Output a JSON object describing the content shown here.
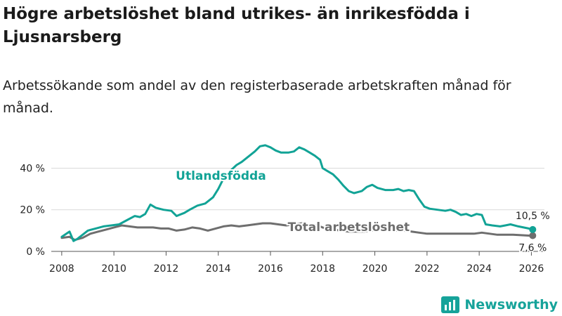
{
  "title": "Högre arbetslöshet bland utrikes- än inrikesfödda i Ljusnarsberg",
  "subtitle": "Arbetssökande som andel av den registerbaserade arbetskraften månad för månad.",
  "brand": {
    "name": "Newsworthy"
  },
  "colors": {
    "foreign": "#12a396",
    "total": "#6e6e6e",
    "grid": "#d9d9d9",
    "text": "#222222"
  },
  "chart_data": {
    "type": "line",
    "title": "Högre arbetslöshet bland utrikes- än inrikesfödda i Ljusnarsberg",
    "ylabel": "",
    "xlabel": "",
    "xlim": [
      2007.6,
      2026.5
    ],
    "ylim": [
      0,
      55
    ],
    "x_ticks": [
      2008,
      2010,
      2012,
      2014,
      2016,
      2018,
      2020,
      2022,
      2024,
      2026
    ],
    "x_tick_labels": [
      "2008",
      "2010",
      "2012",
      "2014",
      "2016",
      "2018",
      "2020",
      "2022",
      "2024",
      "2026"
    ],
    "y_ticks": [
      0,
      20,
      40
    ],
    "y_tick_labels": [
      "0 %",
      "20 %",
      "40 %"
    ],
    "grid": true,
    "series": [
      {
        "name": "Utlandsfödda",
        "end_label": "10,5 %",
        "points": [
          [
            2008.0,
            7
          ],
          [
            2008.3,
            9.5
          ],
          [
            2008.45,
            5
          ],
          [
            2008.6,
            6
          ],
          [
            2008.8,
            8
          ],
          [
            2009.0,
            10
          ],
          [
            2009.3,
            11
          ],
          [
            2009.6,
            12
          ],
          [
            2009.9,
            12.5
          ],
          [
            2010.2,
            13
          ],
          [
            2010.5,
            15
          ],
          [
            2010.8,
            17
          ],
          [
            2011.0,
            16.5
          ],
          [
            2011.2,
            18
          ],
          [
            2011.4,
            22.5
          ],
          [
            2011.6,
            21
          ],
          [
            2011.9,
            20
          ],
          [
            2012.2,
            19.5
          ],
          [
            2012.4,
            17
          ],
          [
            2012.7,
            18.5
          ],
          [
            2012.9,
            20
          ],
          [
            2013.2,
            22
          ],
          [
            2013.5,
            23
          ],
          [
            2013.8,
            26
          ],
          [
            2014.0,
            30
          ],
          [
            2014.2,
            35
          ],
          [
            2014.4,
            38
          ],
          [
            2014.7,
            41.5
          ],
          [
            2014.9,
            43
          ],
          [
            2015.1,
            45
          ],
          [
            2015.4,
            48
          ],
          [
            2015.6,
            50.5
          ],
          [
            2015.8,
            51
          ],
          [
            2016.0,
            50
          ],
          [
            2016.2,
            48.5
          ],
          [
            2016.4,
            47.5
          ],
          [
            2016.7,
            47.5
          ],
          [
            2016.9,
            48
          ],
          [
            2017.1,
            50
          ],
          [
            2017.3,
            49
          ],
          [
            2017.5,
            47.5
          ],
          [
            2017.7,
            46
          ],
          [
            2017.9,
            44
          ],
          [
            2018.0,
            40
          ],
          [
            2018.2,
            38.5
          ],
          [
            2018.4,
            37
          ],
          [
            2018.6,
            34.5
          ],
          [
            2018.8,
            31.5
          ],
          [
            2019.0,
            29
          ],
          [
            2019.2,
            28
          ],
          [
            2019.5,
            29
          ],
          [
            2019.7,
            31
          ],
          [
            2019.9,
            32
          ],
          [
            2020.1,
            30.5
          ],
          [
            2020.4,
            29.5
          ],
          [
            2020.7,
            29.5
          ],
          [
            2020.9,
            30
          ],
          [
            2021.1,
            29
          ],
          [
            2021.3,
            29.5
          ],
          [
            2021.5,
            29
          ],
          [
            2021.7,
            25
          ],
          [
            2021.9,
            21.5
          ],
          [
            2022.1,
            20.5
          ],
          [
            2022.4,
            20
          ],
          [
            2022.7,
            19.5
          ],
          [
            2022.9,
            20
          ],
          [
            2023.1,
            19
          ],
          [
            2023.3,
            17.5
          ],
          [
            2023.5,
            18
          ],
          [
            2023.7,
            17
          ],
          [
            2023.9,
            18
          ],
          [
            2024.1,
            17.5
          ],
          [
            2024.25,
            13
          ],
          [
            2024.5,
            12.5
          ],
          [
            2024.8,
            12
          ],
          [
            2025.0,
            12.5
          ],
          [
            2025.2,
            13
          ],
          [
            2025.5,
            12
          ],
          [
            2025.7,
            11.5
          ],
          [
            2025.9,
            11
          ],
          [
            2026.05,
            10.5
          ]
        ]
      },
      {
        "name": "Total arbetslöshet",
        "end_label": "7,6 %",
        "points": [
          [
            2008.0,
            6.5
          ],
          [
            2008.3,
            7
          ],
          [
            2008.5,
            5.5
          ],
          [
            2008.8,
            6.5
          ],
          [
            2009.1,
            8.5
          ],
          [
            2009.4,
            9.5
          ],
          [
            2009.7,
            10.5
          ],
          [
            2010.0,
            11.5
          ],
          [
            2010.3,
            12.5
          ],
          [
            2010.6,
            12
          ],
          [
            2010.9,
            11.5
          ],
          [
            2011.2,
            11.5
          ],
          [
            2011.5,
            11.5
          ],
          [
            2011.8,
            11
          ],
          [
            2012.1,
            11
          ],
          [
            2012.4,
            10
          ],
          [
            2012.7,
            10.5
          ],
          [
            2013.0,
            11.5
          ],
          [
            2013.3,
            11
          ],
          [
            2013.6,
            10
          ],
          [
            2013.9,
            11
          ],
          [
            2014.2,
            12
          ],
          [
            2014.5,
            12.5
          ],
          [
            2014.8,
            12
          ],
          [
            2015.1,
            12.5
          ],
          [
            2015.4,
            13
          ],
          [
            2015.7,
            13.5
          ],
          [
            2016.0,
            13.5
          ],
          [
            2016.3,
            13
          ],
          [
            2016.6,
            12.5
          ],
          [
            2016.9,
            13
          ],
          [
            2017.2,
            13.5
          ],
          [
            2017.5,
            13
          ],
          [
            2017.8,
            12.5
          ],
          [
            2018.1,
            11
          ],
          [
            2018.4,
            10.5
          ],
          [
            2018.7,
            10
          ],
          [
            2019.0,
            9.5
          ],
          [
            2019.3,
            9.5
          ],
          [
            2019.6,
            9.5
          ],
          [
            2019.9,
            10
          ],
          [
            2020.2,
            10.5
          ],
          [
            2020.5,
            10.5
          ],
          [
            2020.8,
            10
          ],
          [
            2021.1,
            10
          ],
          [
            2021.4,
            9.5
          ],
          [
            2021.7,
            9
          ],
          [
            2022.0,
            8.5
          ],
          [
            2022.3,
            8.5
          ],
          [
            2022.6,
            8.5
          ],
          [
            2022.9,
            8.5
          ],
          [
            2023.2,
            8.5
          ],
          [
            2023.5,
            8.5
          ],
          [
            2023.8,
            8.5
          ],
          [
            2024.1,
            9
          ],
          [
            2024.4,
            8.5
          ],
          [
            2024.7,
            8
          ],
          [
            2025.0,
            8
          ],
          [
            2025.3,
            8
          ],
          [
            2025.6,
            7.8
          ],
          [
            2025.9,
            7.6
          ],
          [
            2026.05,
            7.6
          ]
        ]
      }
    ]
  }
}
